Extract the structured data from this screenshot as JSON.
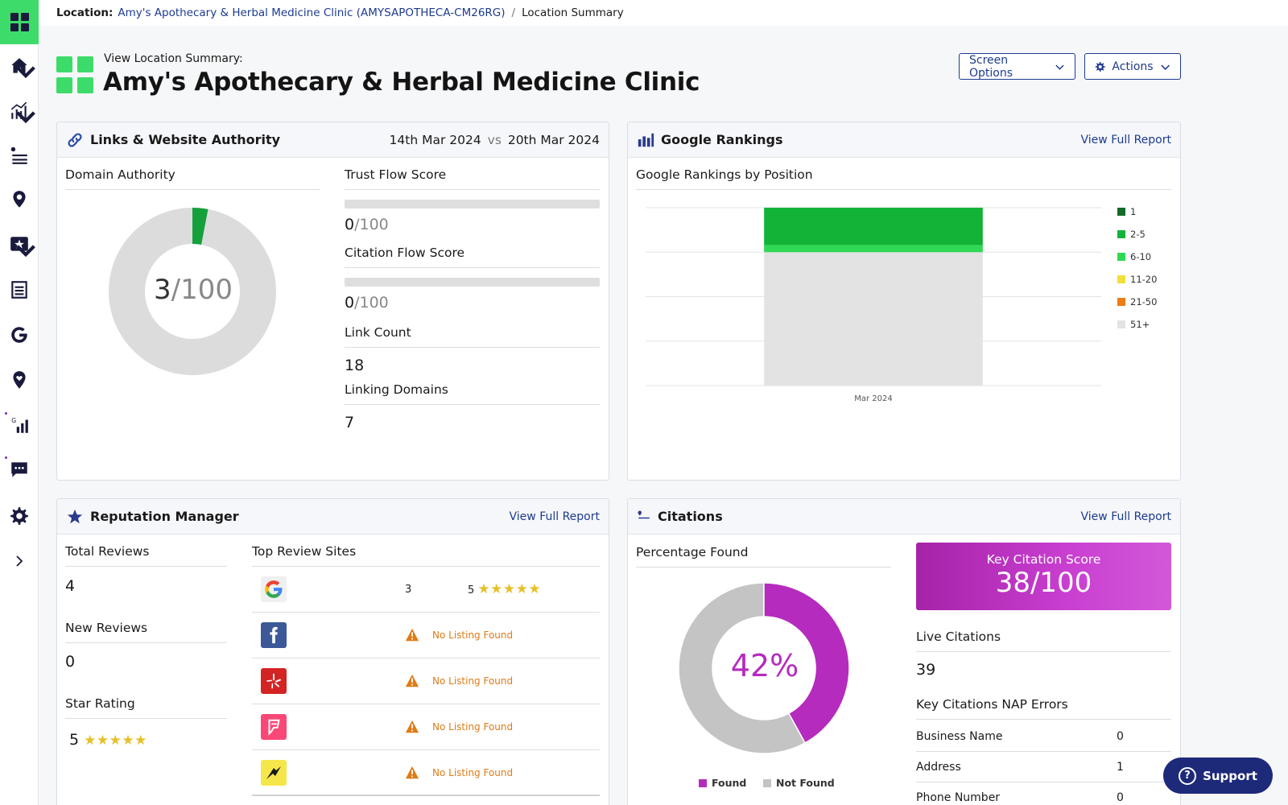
{
  "breadcrumb": {
    "label": "Location:",
    "location_link": "Amy's Apothecary & Herbal Medicine Clinic (AMYSAPOTHECA-CM26RG)",
    "separator": "/",
    "current": "Location Summary"
  },
  "header": {
    "subtitle": "View Location Summary:",
    "title": "Amy's Apothecary & Herbal Medicine Clinic",
    "screen_options_label": "Screen Options",
    "actions_label": "Actions"
  },
  "sidebar": {
    "items": [
      {
        "name": "dashboard",
        "icon": "grid-icon"
      },
      {
        "name": "home",
        "icon": "home-icon"
      },
      {
        "name": "reports",
        "icon": "bar-chart-icon"
      },
      {
        "name": "listings",
        "icon": "listing-icon"
      },
      {
        "name": "locations",
        "icon": "map-pin-icon"
      },
      {
        "name": "reviews",
        "icon": "star-icon"
      },
      {
        "name": "audit",
        "icon": "list-icon"
      },
      {
        "name": "google",
        "icon": "google-icon"
      },
      {
        "name": "local",
        "icon": "pin-heart-icon"
      },
      {
        "name": "rankings",
        "icon": "rank-icon"
      },
      {
        "name": "messages",
        "icon": "chat-icon"
      },
      {
        "name": "settings",
        "icon": "gear-icon"
      },
      {
        "name": "expand",
        "icon": "chevron-right-icon"
      }
    ]
  },
  "links": {
    "title": "Links & Website Authority",
    "date_from": "14th Mar 2024",
    "vs": "vs",
    "date_to": "20th Mar 2024",
    "domain_authority_label": "Domain Authority",
    "domain_authority_value": "3",
    "domain_authority_max": "/100",
    "domain_authority_fraction": 0.03,
    "trust_flow_label": "Trust Flow Score",
    "trust_flow_value": "0",
    "trust_flow_max": "/100",
    "citation_flow_label": "Citation Flow Score",
    "citation_flow_value": "0",
    "citation_flow_max": "/100",
    "link_count_label": "Link Count",
    "link_count_value": "18",
    "linking_domains_label": "Linking Domains",
    "linking_domains_value": "7"
  },
  "rankings": {
    "title": "Google Rankings",
    "view_full": "View Full Report",
    "chart_label": "Google Rankings by Position"
  },
  "chart_data": {
    "type": "bar",
    "stacked": true,
    "categories": [
      "Mar 2024"
    ],
    "series": [
      {
        "name": "1",
        "values": [
          0
        ],
        "color": "#126b27"
      },
      {
        "name": "2-5",
        "values": [
          21
        ],
        "color": "#13b338"
      },
      {
        "name": "6-10",
        "values": [
          4
        ],
        "color": "#2fd955"
      },
      {
        "name": "11-20",
        "values": [
          0
        ],
        "color": "#f2de3a"
      },
      {
        "name": "21-50",
        "values": [
          0
        ],
        "color": "#ef7d13"
      },
      {
        "name": "51+",
        "values": [
          75
        ],
        "color": "#e3e3e3"
      }
    ],
    "ylim": [
      0,
      100
    ],
    "grid": true,
    "legend": "right"
  },
  "reputation": {
    "title": "Reputation Manager",
    "view_full": "View Full Report",
    "total_reviews_label": "Total Reviews",
    "total_reviews_value": "4",
    "new_reviews_label": "New Reviews",
    "new_reviews_value": "0",
    "star_rating_label": "Star Rating",
    "star_rating_value": "5",
    "stars": "★★★★★",
    "top_sites_label": "Top Review Sites",
    "sites": [
      {
        "site": "google-logo",
        "count": "3",
        "rating": "5",
        "stars": "★★★★★"
      },
      {
        "site": "facebook-logo",
        "status": "No Listing Found"
      },
      {
        "site": "yelp-logo",
        "status": "No Listing Found"
      },
      {
        "site": "foursquare-logo",
        "status": "No Listing Found"
      },
      {
        "site": "yellowpages-logo",
        "status": "No Listing Found"
      }
    ]
  },
  "citations": {
    "title": "Citations",
    "view_full": "View Full Report",
    "percentage_label": "Percentage Found",
    "percentage_value": "42%",
    "found_fraction": 0.42,
    "legend_found": "Found",
    "legend_not_found": "Not Found",
    "key_score_label": "Key Citation Score",
    "key_score_value": "38/100",
    "live_label": "Live Citations",
    "live_value": "39",
    "nap_label": "Key Citations NAP Errors",
    "nap_rows": [
      {
        "label": "Business Name",
        "value": "0"
      },
      {
        "label": "Address",
        "value": "1"
      },
      {
        "label": "Phone Number",
        "value": "0"
      }
    ]
  },
  "support": {
    "label": "Support"
  },
  "colors": {
    "brand_green": "#3ddc6a",
    "link_blue": "#1d3b8f",
    "citation_magenta": "#b52bbd",
    "warning_orange": "#e07b16",
    "star_gold": "#e6c02a"
  }
}
